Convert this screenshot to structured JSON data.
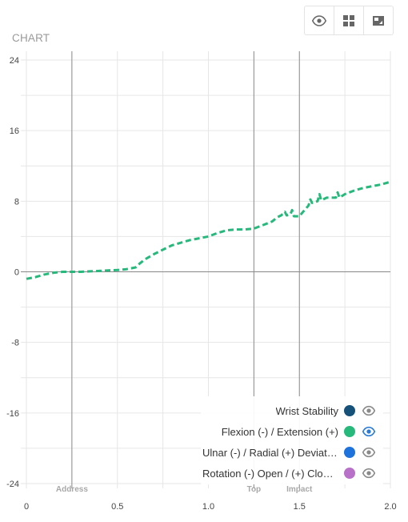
{
  "chart_title": "CHART",
  "toolbar": {
    "buttons": [
      {
        "name": "eye-icon"
      },
      {
        "name": "grid-icon"
      },
      {
        "name": "expand-icon"
      }
    ]
  },
  "colors": {
    "grid": "#e6e6e6",
    "axis_zero": "#888888",
    "marker": "#8c8c8c",
    "tick_text": "#444444",
    "marker_text": "#a8a8a8",
    "eye_active": "#2a7bd6",
    "eye_inactive": "#8a8a8a"
  },
  "legend": {
    "items": [
      {
        "label": "Wrist Stability",
        "color": "#155179",
        "active": false
      },
      {
        "label": "Flexion (-) / Extension (+)",
        "color": "#27b97b",
        "active": true
      },
      {
        "label": "Ulnar (-) / Radial (+) Deviation",
        "color": "#1e72dc",
        "active": false
      },
      {
        "label": "Rotation (-) Open / (+) Closed",
        "color": "#b870c9",
        "active": false
      }
    ]
  },
  "chart_data": {
    "type": "line",
    "title": "CHART",
    "xlim": [
      0,
      2
    ],
    "ylim": [
      -24,
      24
    ],
    "x_ticks": [
      "0",
      "0.5",
      "1.0",
      "1.5",
      "2.0"
    ],
    "x_tick_values": [
      0,
      0.5,
      1.0,
      1.5,
      2.0
    ],
    "y_ticks": [
      "24",
      "16",
      "8",
      "0",
      "-8",
      "-16",
      "-24"
    ],
    "y_tick_values": [
      24,
      16,
      8,
      0,
      -8,
      -16,
      -24
    ],
    "grid": true,
    "legend_position": "bottom-right",
    "markers": [
      {
        "label": "Address",
        "x": 0.25
      },
      {
        "label": "Top",
        "x": 1.25
      },
      {
        "label": "Impact",
        "x": 1.5
      }
    ],
    "series": [
      {
        "name": "Flexion (-) / Extension (+)",
        "color": "#27b97b",
        "style": "dashed",
        "x": [
          0,
          0.05,
          0.1,
          0.15,
          0.2,
          0.25,
          0.3,
          0.35,
          0.4,
          0.45,
          0.5,
          0.55,
          0.6,
          0.62,
          0.65,
          0.7,
          0.75,
          0.8,
          0.85,
          0.9,
          0.95,
          1.0,
          1.05,
          1.1,
          1.15,
          1.2,
          1.25,
          1.3,
          1.35,
          1.38,
          1.4,
          1.42,
          1.43,
          1.45,
          1.46,
          1.47,
          1.5,
          1.52,
          1.55,
          1.56,
          1.57,
          1.6,
          1.61,
          1.62,
          1.65,
          1.7,
          1.71,
          1.72,
          1.75,
          1.8,
          1.85,
          1.9,
          1.95,
          2.0
        ],
        "y": [
          -0.8,
          -0.6,
          -0.3,
          -0.1,
          0.0,
          0.0,
          0.0,
          0.05,
          0.1,
          0.15,
          0.2,
          0.3,
          0.5,
          0.9,
          1.4,
          2.0,
          2.5,
          3.0,
          3.3,
          3.6,
          3.8,
          4.0,
          4.4,
          4.7,
          4.8,
          4.8,
          4.9,
          5.3,
          5.7,
          6.2,
          6.4,
          6.8,
          6.4,
          6.5,
          7.0,
          6.3,
          6.3,
          6.8,
          7.5,
          8.2,
          7.8,
          8.0,
          8.8,
          8.1,
          8.4,
          8.4,
          9.0,
          8.4,
          8.8,
          9.2,
          9.5,
          9.7,
          9.9,
          10.2
        ]
      }
    ]
  }
}
